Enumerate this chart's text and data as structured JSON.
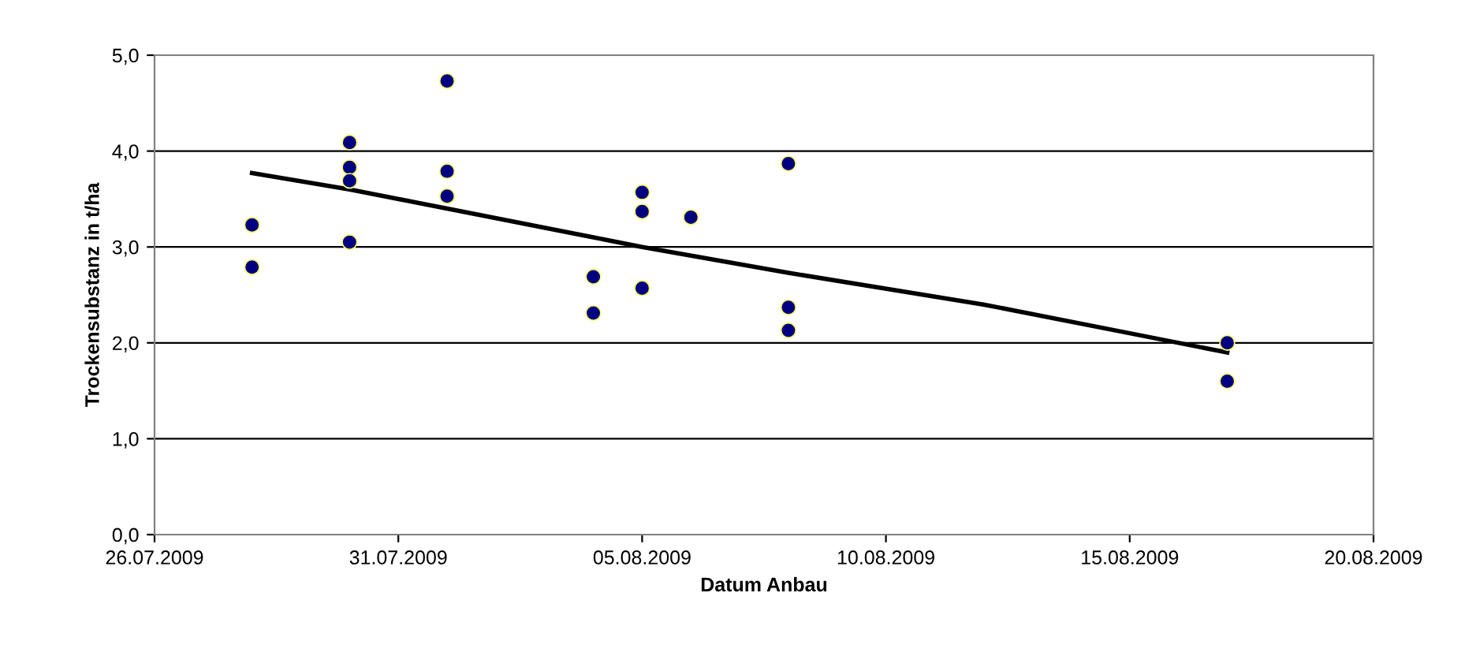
{
  "chart_data": {
    "type": "scatter",
    "xlabel": "Datum Anbau",
    "ylabel": "Trockensubstanz in t/ha",
    "xlim": [
      "2009-07-26",
      "2009-08-20"
    ],
    "xticks": [
      {
        "value": "2009-07-26",
        "label": "26.07.2009"
      },
      {
        "value": "2009-07-31",
        "label": "31.07.2009"
      },
      {
        "value": "2009-08-05",
        "label": "05.08.2009"
      },
      {
        "value": "2009-08-10",
        "label": "10.08.2009"
      },
      {
        "value": "2009-08-15",
        "label": "15.08.2009"
      },
      {
        "value": "2009-08-20",
        "label": "20.08.2009"
      }
    ],
    "ylim": [
      0,
      5
    ],
    "yticks": [
      {
        "value": 0,
        "label": "0,0"
      },
      {
        "value": 1,
        "label": "1,0"
      },
      {
        "value": 2,
        "label": "2,0"
      },
      {
        "value": 3,
        "label": "3,0"
      },
      {
        "value": 4,
        "label": "4,0"
      },
      {
        "value": 5,
        "label": "5,0"
      }
    ],
    "grid": "y",
    "legend": false,
    "series": [
      {
        "color": "#000080",
        "marker": "circle",
        "x": [
          "2009-07-28",
          "2009-07-28",
          "2009-07-30",
          "2009-07-30",
          "2009-07-30",
          "2009-07-30",
          "2009-08-01",
          "2009-08-01",
          "2009-08-01",
          "2009-08-04",
          "2009-08-04",
          "2009-08-05",
          "2009-08-05",
          "2009-08-05",
          "2009-08-06",
          "2009-08-08",
          "2009-08-08",
          "2009-08-08",
          "2009-08-17",
          "2009-08-17"
        ],
        "values": [
          3.23,
          2.79,
          4.09,
          3.83,
          3.69,
          3.05,
          4.73,
          3.79,
          3.53,
          2.69,
          2.31,
          3.57,
          3.37,
          2.57,
          3.31,
          3.87,
          2.37,
          2.13,
          2.0,
          1.6
        ]
      },
      {
        "type": "line",
        "color": "#000000",
        "marker": "none",
        "x": [
          "2009-07-28",
          "2009-07-30",
          "2009-08-01",
          "2009-08-04",
          "2009-08-05",
          "2009-08-08",
          "2009-08-12",
          "2009-08-15",
          "2009-08-17"
        ],
        "values": [
          3.77,
          3.6,
          3.4,
          3.1,
          3.0,
          2.73,
          2.4,
          2.1,
          1.9
        ]
      }
    ]
  }
}
